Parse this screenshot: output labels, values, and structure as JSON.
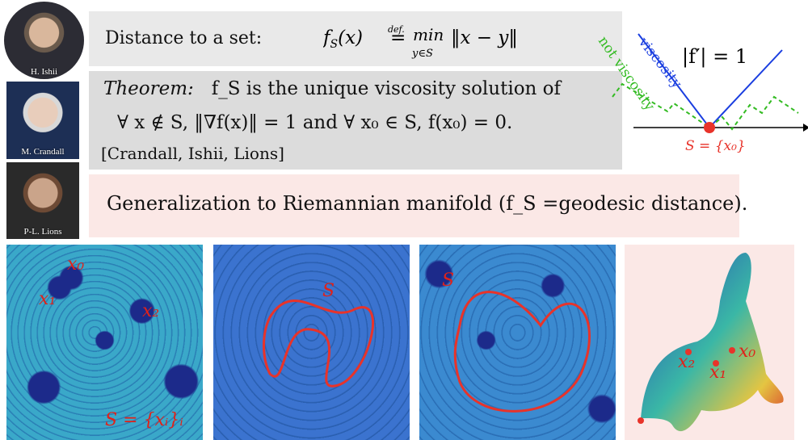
{
  "photos": [
    {
      "caption": "H. Ishii"
    },
    {
      "caption": "M. Crandall"
    },
    {
      "caption": "P-L. Lions"
    }
  ],
  "distance": {
    "label": "Distance to a set:",
    "formula": "f_S(x) =def. min_{y∈S} ‖x − y‖"
  },
  "theorem": {
    "title": "Theorem:",
    "line1": "f_S is the unique viscosity solution of",
    "line2": "∀ x ∉ S,  ‖∇f(x)‖ = 1    and    ∀ x₀ ∈ S,  f(x₀) = 0.",
    "citation": "[Crandall, Ishii, Lions]"
  },
  "generalization": "Generalization to Riemannian manifold (f_S =geodesic distance).",
  "diagram": {
    "eq": "|f′| = 1",
    "viscosity": "viscosity",
    "not_viscosity": "not viscosity",
    "set_label": "S = {x₀}",
    "colors": {
      "viscosity": "#1a3ee0",
      "not_viscosity": "#33bb22",
      "point": "#e8332a"
    }
  },
  "panels": {
    "p1": {
      "x0": "x₀",
      "x1": "x₁",
      "x2": "x₂",
      "set": "S = {xᵢ}ᵢ"
    },
    "p2": {
      "s": "S"
    },
    "p3": {
      "s": "S"
    },
    "p4": {
      "x0": "x₀",
      "x1": "x₁",
      "x2": "x₂"
    }
  }
}
